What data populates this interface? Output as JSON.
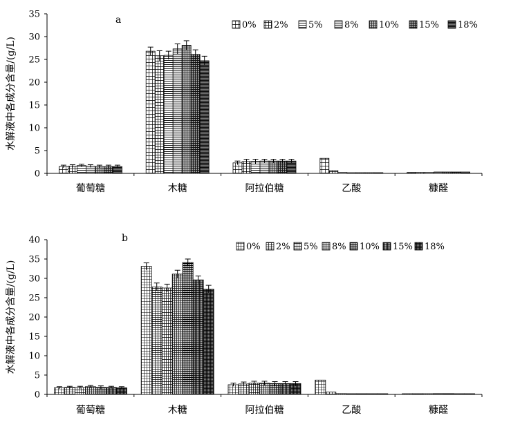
{
  "chart_data": [
    {
      "type": "bar",
      "panel_label": "a",
      "ylabel": "水解液中各成分含量/(g/L)",
      "ylim": [
        0,
        35
      ],
      "yticks": [
        0,
        5,
        10,
        15,
        20,
        25,
        30,
        35
      ],
      "categories": [
        "葡萄糖",
        "木糖",
        "阿拉伯糖",
        "乙酸",
        "糠醛"
      ],
      "legend_position": "top-right",
      "series": [
        {
          "name": "0%",
          "values": [
            1.5,
            26.8,
            2.3,
            3.3,
            0.2
          ],
          "errors": [
            0.3,
            0.9,
            0.4,
            0,
            0
          ]
        },
        {
          "name": "2%",
          "values": [
            1.6,
            25.8,
            2.6,
            0.6,
            0.2
          ],
          "errors": [
            0.3,
            1.1,
            0.5,
            0,
            0
          ]
        },
        {
          "name": "5%",
          "values": [
            1.7,
            25.9,
            2.6,
            0.2,
            0.2
          ],
          "errors": [
            0.3,
            0.9,
            0.5,
            0,
            0
          ]
        },
        {
          "name": "8%",
          "values": [
            1.6,
            27.3,
            2.7,
            0.1,
            0.3
          ],
          "errors": [
            0.3,
            1.1,
            0.4,
            0,
            0
          ]
        },
        {
          "name": "10%",
          "values": [
            1.5,
            28.1,
            2.7,
            0.1,
            0.3
          ],
          "errors": [
            0.3,
            1.0,
            0.4,
            0,
            0
          ]
        },
        {
          "name": "15%",
          "values": [
            1.5,
            26.1,
            2.7,
            0.1,
            0.3
          ],
          "errors": [
            0.3,
            1.0,
            0.4,
            0,
            0
          ]
        },
        {
          "name": "18%",
          "values": [
            1.5,
            24.7,
            2.7,
            0.1,
            0.3
          ],
          "errors": [
            0.3,
            1.0,
            0.4,
            0,
            0
          ]
        }
      ]
    },
    {
      "type": "bar",
      "panel_label": "b",
      "ylabel": "水解液中各成分含量/(g/L)",
      "ylim": [
        0,
        40
      ],
      "yticks": [
        0,
        5,
        10,
        15,
        20,
        25,
        30,
        35,
        40
      ],
      "categories": [
        "葡萄糖",
        "木糖",
        "阿拉伯糖",
        "乙酸",
        "糠醛"
      ],
      "legend_position": "top-right",
      "series": [
        {
          "name": "0%",
          "values": [
            1.7,
            33.1,
            2.5,
            3.7,
            0.1
          ],
          "errors": [
            0.3,
            0.9,
            0.4,
            0,
            0
          ]
        },
        {
          "name": "2%",
          "values": [
            1.8,
            27.8,
            2.7,
            0.6,
            0.1
          ],
          "errors": [
            0.3,
            1.0,
            0.5,
            0,
            0
          ]
        },
        {
          "name": "5%",
          "values": [
            1.8,
            27.5,
            2.9,
            0.2,
            0.1
          ],
          "errors": [
            0.3,
            1.0,
            0.5,
            0,
            0
          ]
        },
        {
          "name": "8%",
          "values": [
            2.0,
            31.1,
            2.9,
            0.1,
            0.2
          ],
          "errors": [
            0.3,
            1.0,
            0.5,
            0,
            0
          ]
        },
        {
          "name": "10%",
          "values": [
            1.8,
            34.1,
            2.8,
            0.1,
            0.2
          ],
          "errors": [
            0.4,
            0.9,
            0.5,
            0,
            0
          ]
        },
        {
          "name": "15%",
          "values": [
            1.8,
            29.6,
            2.8,
            0.1,
            0.1
          ],
          "errors": [
            0.3,
            1.0,
            0.5,
            0,
            0
          ]
        },
        {
          "name": "18%",
          "values": [
            1.7,
            27.2,
            2.8,
            0.1,
            0.1
          ],
          "errors": [
            0.3,
            1.0,
            0.5,
            0,
            0
          ]
        }
      ]
    }
  ]
}
